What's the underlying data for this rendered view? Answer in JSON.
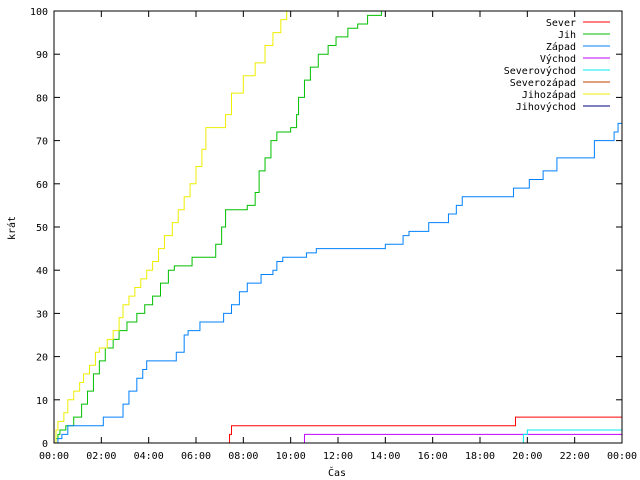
{
  "chart_data": {
    "type": "line",
    "title": "",
    "xlabel": "Čas",
    "ylabel": "krát",
    "xlim": [
      "00:00",
      "24:00"
    ],
    "ylim": [
      0,
      100
    ],
    "x_ticks": [
      "00:00",
      "02:00",
      "04:00",
      "06:00",
      "08:00",
      "10:00",
      "12:00",
      "14:00",
      "16:00",
      "18:00",
      "20:00",
      "22:00",
      "00:00"
    ],
    "y_ticks": [
      0,
      10,
      20,
      30,
      40,
      50,
      60,
      70,
      80,
      90,
      100
    ],
    "grid": false,
    "legend": "top-right",
    "step": true,
    "series": [
      {
        "name": "Sever",
        "color": "#ff0000",
        "points": [
          [
            "07:25",
            0
          ],
          [
            "07:25",
            2
          ],
          [
            "07:30",
            2
          ],
          [
            "07:30",
            4
          ],
          [
            "19:30",
            4
          ],
          [
            "19:30",
            6
          ],
          [
            "24:00",
            6
          ]
        ]
      },
      {
        "name": "Jih",
        "color": "#00c000",
        "points": [
          [
            "00:05",
            0
          ],
          [
            "00:05",
            1
          ],
          [
            "00:10",
            1
          ],
          [
            "00:10",
            2
          ],
          [
            "00:15",
            2
          ],
          [
            "00:15",
            3
          ],
          [
            "00:30",
            3
          ],
          [
            "00:30",
            4
          ],
          [
            "00:50",
            4
          ],
          [
            "00:50",
            6
          ],
          [
            "01:10",
            6
          ],
          [
            "01:10",
            9
          ],
          [
            "01:25",
            9
          ],
          [
            "01:25",
            12
          ],
          [
            "01:40",
            12
          ],
          [
            "01:40",
            16
          ],
          [
            "01:55",
            16
          ],
          [
            "01:55",
            19
          ],
          [
            "02:10",
            19
          ],
          [
            "02:10",
            22
          ],
          [
            "02:30",
            22
          ],
          [
            "02:30",
            24
          ],
          [
            "02:45",
            24
          ],
          [
            "02:45",
            26
          ],
          [
            "03:05",
            26
          ],
          [
            "03:05",
            28
          ],
          [
            "03:30",
            28
          ],
          [
            "03:30",
            30
          ],
          [
            "03:50",
            30
          ],
          [
            "03:50",
            32
          ],
          [
            "04:10",
            32
          ],
          [
            "04:10",
            34
          ],
          [
            "04:30",
            34
          ],
          [
            "04:30",
            37
          ],
          [
            "04:50",
            37
          ],
          [
            "04:50",
            40
          ],
          [
            "05:05",
            40
          ],
          [
            "05:05",
            41
          ],
          [
            "05:50",
            41
          ],
          [
            "05:50",
            43
          ],
          [
            "06:50",
            43
          ],
          [
            "06:50",
            46
          ],
          [
            "07:05",
            46
          ],
          [
            "07:05",
            50
          ],
          [
            "07:15",
            50
          ],
          [
            "07:15",
            54
          ],
          [
            "08:10",
            54
          ],
          [
            "08:10",
            55
          ],
          [
            "08:30",
            55
          ],
          [
            "08:30",
            58
          ],
          [
            "08:40",
            58
          ],
          [
            "08:40",
            63
          ],
          [
            "08:55",
            63
          ],
          [
            "08:55",
            66
          ],
          [
            "09:10",
            66
          ],
          [
            "09:10",
            70
          ],
          [
            "09:25",
            70
          ],
          [
            "09:25",
            72
          ],
          [
            "10:00",
            72
          ],
          [
            "10:00",
            73
          ],
          [
            "10:15",
            73
          ],
          [
            "10:15",
            76
          ],
          [
            "10:20",
            76
          ],
          [
            "10:20",
            80
          ],
          [
            "10:35",
            80
          ],
          [
            "10:35",
            84
          ],
          [
            "10:50",
            84
          ],
          [
            "10:50",
            87
          ],
          [
            "11:10",
            87
          ],
          [
            "11:10",
            90
          ],
          [
            "11:35",
            90
          ],
          [
            "11:35",
            92
          ],
          [
            "11:55",
            92
          ],
          [
            "11:55",
            94
          ],
          [
            "12:25",
            94
          ],
          [
            "12:25",
            96
          ],
          [
            "12:50",
            96
          ],
          [
            "12:50",
            97
          ],
          [
            "13:15",
            97
          ],
          [
            "13:15",
            99
          ],
          [
            "13:50",
            99
          ],
          [
            "13:50",
            100
          ],
          [
            "14:00",
            100
          ]
        ]
      },
      {
        "name": "Západ",
        "color": "#0080ff",
        "points": [
          [
            "00:10",
            0
          ],
          [
            "00:10",
            1
          ],
          [
            "00:20",
            1
          ],
          [
            "00:20",
            2
          ],
          [
            "00:35",
            2
          ],
          [
            "00:35",
            4
          ],
          [
            "02:05",
            4
          ],
          [
            "02:05",
            6
          ],
          [
            "02:55",
            6
          ],
          [
            "02:55",
            9
          ],
          [
            "03:10",
            9
          ],
          [
            "03:10",
            12
          ],
          [
            "03:30",
            12
          ],
          [
            "03:30",
            15
          ],
          [
            "03:45",
            15
          ],
          [
            "03:45",
            17
          ],
          [
            "03:55",
            17
          ],
          [
            "03:55",
            19
          ],
          [
            "05:10",
            19
          ],
          [
            "05:10",
            21
          ],
          [
            "05:30",
            21
          ],
          [
            "05:30",
            25
          ],
          [
            "05:40",
            25
          ],
          [
            "05:40",
            26
          ],
          [
            "06:10",
            26
          ],
          [
            "06:10",
            28
          ],
          [
            "07:10",
            28
          ],
          [
            "07:10",
            30
          ],
          [
            "07:30",
            30
          ],
          [
            "07:30",
            32
          ],
          [
            "07:50",
            32
          ],
          [
            "07:50",
            35
          ],
          [
            "08:10",
            35
          ],
          [
            "08:10",
            37
          ],
          [
            "08:45",
            37
          ],
          [
            "08:45",
            39
          ],
          [
            "09:15",
            39
          ],
          [
            "09:15",
            40
          ],
          [
            "09:25",
            40
          ],
          [
            "09:25",
            42
          ],
          [
            "09:40",
            42
          ],
          [
            "09:40",
            43
          ],
          [
            "10:40",
            43
          ],
          [
            "10:40",
            44
          ],
          [
            "11:05",
            44
          ],
          [
            "11:05",
            45
          ],
          [
            "14:00",
            45
          ],
          [
            "14:00",
            46
          ],
          [
            "14:45",
            46
          ],
          [
            "14:45",
            48
          ],
          [
            "15:00",
            48
          ],
          [
            "15:00",
            49
          ],
          [
            "15:50",
            49
          ],
          [
            "15:50",
            51
          ],
          [
            "16:40",
            51
          ],
          [
            "16:40",
            53
          ],
          [
            "17:00",
            53
          ],
          [
            "17:00",
            55
          ],
          [
            "17:15",
            55
          ],
          [
            "17:15",
            57
          ],
          [
            "19:25",
            57
          ],
          [
            "19:25",
            59
          ],
          [
            "20:05",
            59
          ],
          [
            "20:05",
            61
          ],
          [
            "20:40",
            61
          ],
          [
            "20:40",
            63
          ],
          [
            "21:15",
            63
          ],
          [
            "21:15",
            66
          ],
          [
            "22:50",
            66
          ],
          [
            "22:50",
            70
          ],
          [
            "23:40",
            70
          ],
          [
            "23:40",
            72
          ],
          [
            "23:50",
            72
          ],
          [
            "23:50",
            74
          ],
          [
            "24:00",
            74
          ]
        ]
      },
      {
        "name": "Východ",
        "color": "#c000ff",
        "points": [
          [
            "10:35",
            0
          ],
          [
            "10:35",
            2
          ],
          [
            "24:00",
            2
          ]
        ]
      },
      {
        "name": "Severovýchod",
        "color": "#00eeee",
        "points": [
          [
            "19:50",
            0
          ],
          [
            "19:50",
            2
          ],
          [
            "20:00",
            2
          ],
          [
            "20:00",
            3
          ],
          [
            "24:00",
            3
          ]
        ]
      },
      {
        "name": "Severozápad",
        "color": "#c04000",
        "points": [
          [
            "00:00",
            0
          ],
          [
            "24:00",
            0
          ]
        ]
      },
      {
        "name": "Jihozápad",
        "color": "#eeee00",
        "points": [
          [
            "00:05",
            0
          ],
          [
            "00:05",
            3
          ],
          [
            "00:10",
            3
          ],
          [
            "00:10",
            5
          ],
          [
            "00:25",
            5
          ],
          [
            "00:25",
            7
          ],
          [
            "00:35",
            7
          ],
          [
            "00:35",
            10
          ],
          [
            "00:50",
            10
          ],
          [
            "00:50",
            12
          ],
          [
            "01:05",
            12
          ],
          [
            "01:05",
            14
          ],
          [
            "01:15",
            14
          ],
          [
            "01:15",
            16
          ],
          [
            "01:30",
            16
          ],
          [
            "01:30",
            18
          ],
          [
            "01:45",
            18
          ],
          [
            "01:45",
            21
          ],
          [
            "01:55",
            21
          ],
          [
            "01:55",
            22
          ],
          [
            "02:15",
            22
          ],
          [
            "02:15",
            24
          ],
          [
            "02:30",
            24
          ],
          [
            "02:30",
            26
          ],
          [
            "02:45",
            26
          ],
          [
            "02:45",
            29
          ],
          [
            "02:55",
            29
          ],
          [
            "02:55",
            32
          ],
          [
            "03:10",
            32
          ],
          [
            "03:10",
            34
          ],
          [
            "03:25",
            34
          ],
          [
            "03:25",
            36
          ],
          [
            "03:40",
            36
          ],
          [
            "03:40",
            38
          ],
          [
            "03:55",
            38
          ],
          [
            "03:55",
            40
          ],
          [
            "04:10",
            40
          ],
          [
            "04:10",
            42
          ],
          [
            "04:25",
            42
          ],
          [
            "04:25",
            45
          ],
          [
            "04:40",
            45
          ],
          [
            "04:40",
            48
          ],
          [
            "05:00",
            48
          ],
          [
            "05:00",
            51
          ],
          [
            "05:15",
            51
          ],
          [
            "05:15",
            54
          ],
          [
            "05:30",
            54
          ],
          [
            "05:30",
            57
          ],
          [
            "05:45",
            57
          ],
          [
            "05:45",
            60
          ],
          [
            "06:00",
            60
          ],
          [
            "06:00",
            64
          ],
          [
            "06:15",
            64
          ],
          [
            "06:15",
            68
          ],
          [
            "06:25",
            68
          ],
          [
            "06:25",
            73
          ],
          [
            "07:15",
            73
          ],
          [
            "07:15",
            76
          ],
          [
            "07:30",
            76
          ],
          [
            "07:30",
            81
          ],
          [
            "08:00",
            81
          ],
          [
            "08:00",
            85
          ],
          [
            "08:30",
            85
          ],
          [
            "08:30",
            88
          ],
          [
            "08:55",
            88
          ],
          [
            "08:55",
            92
          ],
          [
            "09:15",
            92
          ],
          [
            "09:15",
            95
          ],
          [
            "09:35",
            95
          ],
          [
            "09:35",
            98
          ],
          [
            "09:50",
            98
          ],
          [
            "09:50",
            100
          ],
          [
            "10:00",
            100
          ]
        ]
      },
      {
        "name": "Jihovýchod",
        "color": "#000080",
        "points": [
          [
            "00:00",
            0
          ],
          [
            "24:00",
            0
          ]
        ]
      }
    ]
  }
}
